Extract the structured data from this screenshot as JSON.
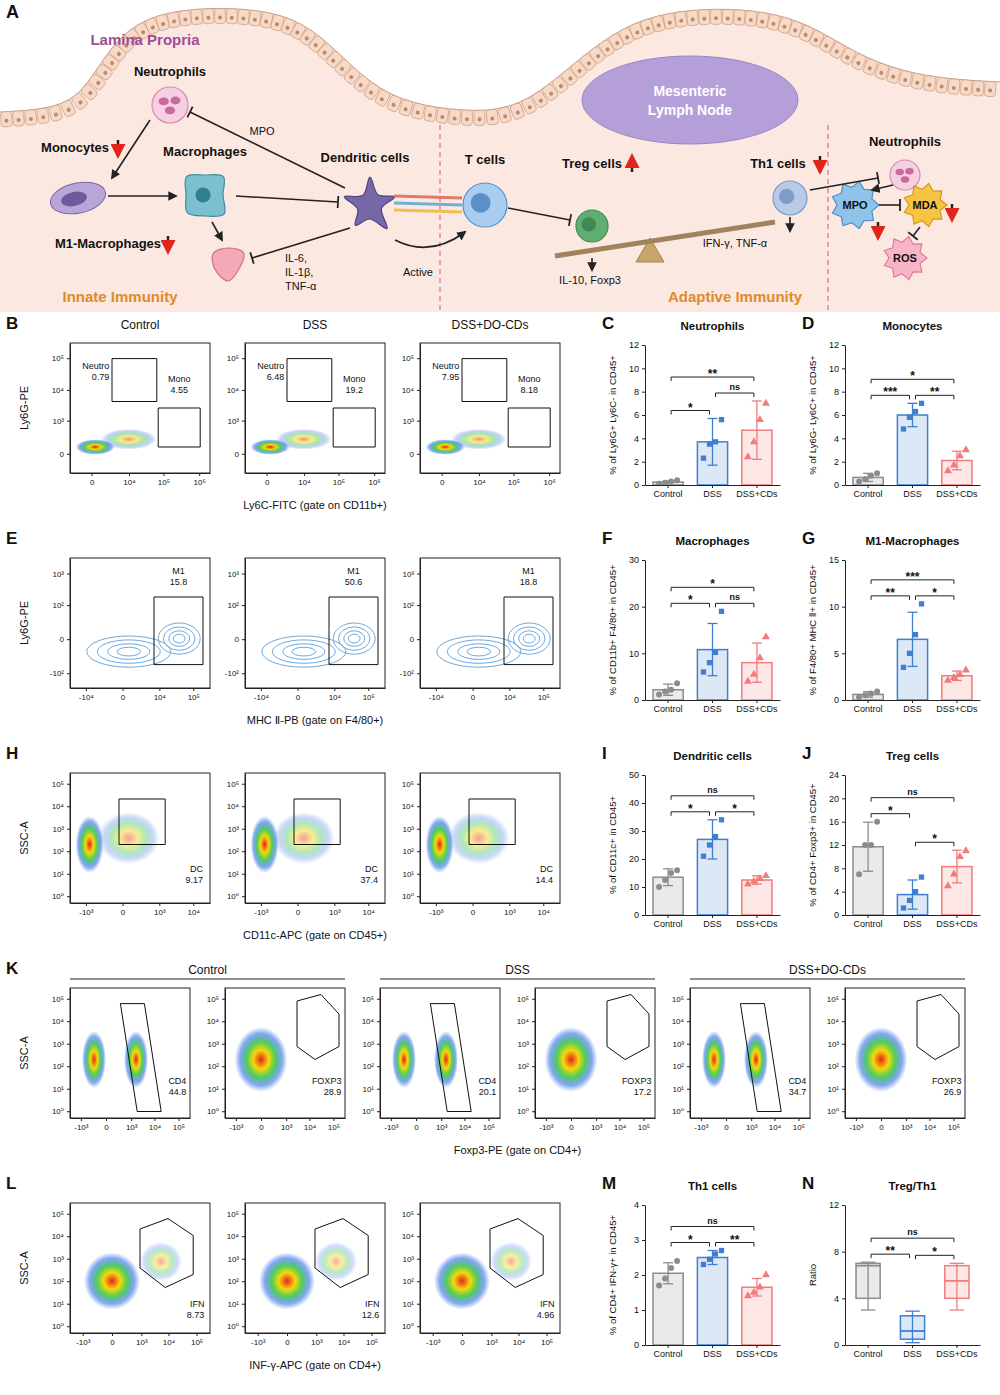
{
  "diagram": {
    "panel": "A",
    "region_label": "Lamina Propria",
    "lymph_node": "Mesenteric Lymph Node",
    "labels": [
      "Neutrophils",
      "Monocytes",
      "Macrophages",
      "M1-Macrophages",
      "Dendritic cells",
      "T cells",
      "Treg cells",
      "Th1 cells",
      "Neutrophils",
      "MPO",
      "MPO",
      "MDA",
      "ROS",
      "Active",
      "IL-10, Foxp3",
      "IFN-γ, TNF-α"
    ],
    "cytokines": [
      "IL-6,",
      "IL-1β,",
      "TNF-α"
    ],
    "sections": [
      "Innate Immunity",
      "Adaptive Immunity"
    ]
  },
  "chart_data": [
    {
      "panel": "B",
      "type": "flow",
      "titles": [
        "Control",
        "DSS",
        "DSS+DO-CDs"
      ],
      "xlabel": "Ly6C-FITC (gate on CD11b+)",
      "ylabel": "Ly6G-PE",
      "xlim": [
        -3000,
        2000000
      ],
      "xticks": [
        0,
        {
          "value": 10000,
          "label": "10⁴"
        },
        {
          "value": 100000,
          "label": "10⁵"
        },
        {
          "value": 1000000,
          "label": "10⁶"
        }
      ],
      "ylim": [
        -300,
        300000
      ],
      "yticks": [
        0,
        {
          "value": 1000,
          "label": "10³"
        },
        {
          "value": 10000,
          "label": "10⁴"
        },
        {
          "value": 100000,
          "label": "10⁵"
        }
      ],
      "plots": [
        {
          "gates": [
            {
              "label": "Neutro",
              "value": 0.79
            },
            {
              "label": "Mono",
              "value": 4.55
            }
          ]
        },
        {
          "gates": [
            {
              "label": "Neutro",
              "value": 6.48
            },
            {
              "label": "Mono",
              "value": 19.2
            }
          ]
        },
        {
          "gates": [
            {
              "label": "Neutro",
              "value": 7.95
            },
            {
              "label": "Mono",
              "value": 8.18
            }
          ]
        }
      ]
    },
    {
      "panel": "C",
      "type": "bar",
      "title": "Neutrophils",
      "ylabel": "% of Ly6G+ Ly6C- in CD45+",
      "categories": [
        "Control",
        "DSS",
        "DSS+CDs"
      ],
      "values": [
        0.25,
        3.7,
        4.7
      ],
      "errors": [
        0.1,
        2.0,
        2.5
      ],
      "points": [
        [
          0.1,
          0.2,
          0.3,
          0.4
        ],
        [
          2.3,
          3.5,
          3.7,
          5.6
        ],
        [
          2.4,
          3.7,
          5.6,
          7.0
        ]
      ],
      "colors": [
        "#8c8c8c",
        "#3f7fcf",
        "#f27c7c"
      ],
      "ylim": [
        0,
        12
      ],
      "yticks": [
        0,
        2,
        4,
        6,
        8,
        10,
        12
      ],
      "significance": [
        {
          "groups": [
            "Control",
            "DSS"
          ],
          "label": "*"
        },
        {
          "groups": [
            "DSS",
            "DSS+CDs"
          ],
          "label": "ns"
        },
        {
          "groups": [
            "Control",
            "DSS+CDs"
          ],
          "label": "**"
        }
      ]
    },
    {
      "panel": "D",
      "type": "bar",
      "title": "Monocytes",
      "ylabel": "% of Ly6G- Ly6C+ in CD45+",
      "categories": [
        "Control",
        "DSS",
        "DSS+CDs"
      ],
      "values": [
        0.65,
        6.0,
        2.1
      ],
      "errors": [
        0.35,
        1.0,
        0.8
      ],
      "points": [
        [
          0.3,
          0.5,
          0.8,
          1.0
        ],
        [
          4.8,
          5.8,
          6.3,
          7.0
        ],
        [
          1.2,
          1.7,
          2.5,
          3.0
        ]
      ],
      "colors": [
        "#8c8c8c",
        "#3f7fcf",
        "#f27c7c"
      ],
      "ylim": [
        0,
        12
      ],
      "yticks": [
        0,
        2,
        4,
        6,
        8,
        10,
        12
      ],
      "significance": [
        {
          "groups": [
            "Control",
            "DSS"
          ],
          "label": "***"
        },
        {
          "groups": [
            "DSS",
            "DSS+CDs"
          ],
          "label": "**"
        },
        {
          "groups": [
            "Control",
            "DSS+CDs"
          ],
          "label": "*"
        }
      ]
    },
    {
      "panel": "E",
      "type": "flow",
      "xlabel": "MHC Ⅱ-PB (gate on F4/80+)",
      "ylabel": "Ly6G-PE",
      "xlim": [
        -30000,
        300000
      ],
      "xticks": [
        {
          "value": -10000,
          "label": "-10⁴"
        },
        0,
        {
          "value": 10000,
          "label": "10⁴"
        },
        {
          "value": 100000,
          "label": "10⁵"
        }
      ],
      "ylim": [
        -300,
        3000
      ],
      "yticks": [
        {
          "value": -100,
          "label": "-10²"
        },
        0,
        {
          "value": 100,
          "label": "10²"
        },
        {
          "value": 1000,
          "label": "10³"
        }
      ],
      "plots": [
        {
          "gates": [
            {
              "label": "M1",
              "value": 15.8
            }
          ]
        },
        {
          "gates": [
            {
              "label": "M1",
              "value": 50.6
            }
          ]
        },
        {
          "gates": [
            {
              "label": "M1",
              "value": 18.8
            }
          ]
        }
      ]
    },
    {
      "panel": "F",
      "type": "bar",
      "title": "Macrophages",
      "ylabel": "% of CD11b+ F4/80+ in CD45+",
      "categories": [
        "Control",
        "DSS",
        "DSS+CDs"
      ],
      "values": [
        2.2,
        10.8,
        8.0
      ],
      "errors": [
        1.2,
        5.6,
        4.2
      ],
      "points": [
        [
          1.2,
          1.8,
          2.2,
          3.6
        ],
        [
          6.0,
          8.0,
          10.2,
          19.0
        ],
        [
          4.0,
          5.5,
          9.0,
          13.5
        ]
      ],
      "colors": [
        "#8c8c8c",
        "#3f7fcf",
        "#f27c7c"
      ],
      "ylim": [
        0,
        30
      ],
      "yticks": [
        0,
        10,
        20,
        30
      ],
      "significance": [
        {
          "groups": [
            "Control",
            "DSS"
          ],
          "label": "*"
        },
        {
          "groups": [
            "DSS",
            "DSS+CDs"
          ],
          "label": "ns"
        },
        {
          "groups": [
            "Control",
            "DSS+CDs"
          ],
          "label": "*"
        }
      ]
    },
    {
      "panel": "G",
      "type": "bar",
      "title": "M1-Macrophages",
      "ylabel": "% of F4/80+ MHC Ⅱ+ in CD45+",
      "categories": [
        "Control",
        "DSS",
        "DSS+CDs"
      ],
      "values": [
        0.6,
        6.5,
        2.6
      ],
      "errors": [
        0.3,
        2.9,
        0.5
      ],
      "points": [
        [
          0.3,
          0.5,
          0.7,
          0.9
        ],
        [
          3.5,
          5.0,
          7.0,
          10.3
        ],
        [
          2.1,
          2.4,
          2.7,
          3.2
        ]
      ],
      "colors": [
        "#8c8c8c",
        "#3f7fcf",
        "#f27c7c"
      ],
      "ylim": [
        0,
        15
      ],
      "yticks": [
        0,
        5,
        10,
        15
      ],
      "significance": [
        {
          "groups": [
            "Control",
            "DSS"
          ],
          "label": "**"
        },
        {
          "groups": [
            "DSS",
            "DSS+CDs"
          ],
          "label": "*"
        },
        {
          "groups": [
            "Control",
            "DSS+CDs"
          ],
          "label": "***"
        }
      ]
    },
    {
      "panel": "H",
      "type": "flow",
      "log": "y",
      "xlabel": "CD11c-APC (gate on CD45+)",
      "ylabel": "SSC-A",
      "xlim": [
        -3000,
        30000
      ],
      "xticks": [
        {
          "value": -1000,
          "label": "-10³"
        },
        0,
        {
          "value": 1000,
          "label": "10³"
        },
        {
          "value": 10000,
          "label": "10⁴"
        }
      ],
      "ylim": [
        0.5,
        300000
      ],
      "yticks": [
        {
          "value": 1,
          "label": "10⁰"
        },
        {
          "value": 10,
          "label": "10¹"
        },
        {
          "value": 100,
          "label": "10²"
        },
        {
          "value": 1000,
          "label": "10³"
        },
        {
          "value": 10000,
          "label": "10⁴"
        },
        {
          "value": 100000,
          "label": "10⁵"
        }
      ],
      "plots": [
        {
          "gates": [
            {
              "label": "DC",
              "value": 9.17
            }
          ]
        },
        {
          "gates": [
            {
              "label": "DC",
              "value": 37.4
            }
          ]
        },
        {
          "gates": [
            {
              "label": "DC",
              "value": 14.4
            }
          ]
        }
      ]
    },
    {
      "panel": "I",
      "type": "bar",
      "title": "Dendritic cells",
      "ylabel": "% of CD11c+ in CD45+",
      "categories": [
        "Control",
        "DSS",
        "DSS+CDs"
      ],
      "values": [
        13.5,
        27.0,
        12.5
      ],
      "errors": [
        3.0,
        7.0,
        1.5
      ],
      "points": [
        [
          10,
          12.5,
          15,
          16
        ],
        [
          21,
          25,
          28,
          34
        ],
        [
          11,
          12,
          13,
          14
        ]
      ],
      "colors": [
        "#8c8c8c",
        "#3f7fcf",
        "#f27c7c"
      ],
      "ylim": [
        0,
        50
      ],
      "yticks": [
        0,
        10,
        20,
        30,
        40,
        50
      ],
      "significance": [
        {
          "groups": [
            "Control",
            "DSS"
          ],
          "label": "*"
        },
        {
          "groups": [
            "DSS",
            "DSS+CDs"
          ],
          "label": "*"
        },
        {
          "groups": [
            "Control",
            "DSS+CDs"
          ],
          "label": "ns"
        }
      ]
    },
    {
      "panel": "J",
      "type": "bar",
      "title": "Treg cells",
      "ylabel": "% of CD4+ Foxp3+ in CD45+",
      "categories": [
        "Control",
        "DSS",
        "DSS+CDs"
      ],
      "values": [
        11.7,
        3.5,
        8.3
      ],
      "errors": [
        4.2,
        2.5,
        2.8
      ],
      "points": [
        [
          7,
          12,
          12,
          16
        ],
        [
          1.2,
          2.5,
          4.0,
          6.5
        ],
        [
          5,
          7,
          10,
          11
        ]
      ],
      "colors": [
        "#8c8c8c",
        "#3f7fcf",
        "#f27c7c"
      ],
      "ylim": [
        0,
        24
      ],
      "yticks": [
        0,
        4,
        8,
        12,
        16,
        20,
        24
      ],
      "significance": [
        {
          "groups": [
            "Control",
            "DSS"
          ],
          "label": "*"
        },
        {
          "groups": [
            "DSS",
            "DSS+CDs"
          ],
          "label": "*"
        },
        {
          "groups": [
            "Control",
            "DSS+CDs"
          ],
          "label": "ns"
        }
      ]
    },
    {
      "panel": "K",
      "type": "flow",
      "log": "y",
      "titles": [
        "Control",
        "DSS",
        "DSS+DO-CDs"
      ],
      "xlabel": "Foxp3-PE (gate on CD4+)",
      "ylabel": "SSC-A",
      "xlim": [
        -3000,
        300000
      ],
      "xticks": [
        {
          "value": -1000,
          "label": "-10³"
        },
        0,
        {
          "value": 1000,
          "label": "10³"
        },
        {
          "value": 10000,
          "label": "10⁴"
        },
        {
          "value": 100000,
          "label": "10⁵"
        }
      ],
      "ylim": [
        0.5,
        300000
      ],
      "yticks": [
        {
          "value": 1,
          "label": "10⁰"
        },
        {
          "value": 10,
          "label": "10¹"
        },
        {
          "value": 100,
          "label": "10²"
        },
        {
          "value": 1000,
          "label": "10³"
        },
        {
          "value": 10000,
          "label": "10⁴"
        },
        {
          "value": 100000,
          "label": "10⁵"
        }
      ],
      "plots": [
        {
          "gates": [
            {
              "label": "CD4",
              "value": 44.8
            }
          ]
        },
        {
          "gates": [
            {
              "label": "FOXP3",
              "value": 28.9
            }
          ]
        },
        {
          "gates": [
            {
              "label": "CD4",
              "value": 20.1
            }
          ]
        },
        {
          "gates": [
            {
              "label": "FOXP3",
              "value": 17.2
            }
          ]
        },
        {
          "gates": [
            {
              "label": "CD4",
              "value": 34.7
            }
          ]
        },
        {
          "gates": [
            {
              "label": "FOXP3",
              "value": 26.9
            }
          ]
        }
      ]
    },
    {
      "panel": "L",
      "type": "flow",
      "log": "y",
      "xlabel": "INF-γ-APC (gate on CD4+)",
      "ylabel": "SSC-A",
      "xlim": [
        -3000,
        300000
      ],
      "xticks": [
        {
          "value": -1000,
          "label": "-10³"
        },
        0,
        {
          "value": 1000,
          "label": "10³"
        },
        {
          "value": 10000,
          "label": "10⁴"
        },
        {
          "value": 100000,
          "label": "10⁵"
        }
      ],
      "ylim": [
        0.5,
        300000
      ],
      "yticks": [
        {
          "value": 1,
          "label": "10⁰"
        },
        {
          "value": 10,
          "label": "10¹"
        },
        {
          "value": 100,
          "label": "10²"
        },
        {
          "value": 1000,
          "label": "10³"
        },
        {
          "value": 10000,
          "label": "10⁴"
        },
        {
          "value": 100000,
          "label": "10⁵"
        }
      ],
      "plots": [
        {
          "gates": [
            {
              "label": "IFN",
              "value": 8.73
            }
          ]
        },
        {
          "gates": [
            {
              "label": "IFN",
              "value": 12.6
            }
          ]
        },
        {
          "gates": [
            {
              "label": "IFN",
              "value": 4.96
            }
          ]
        }
      ]
    },
    {
      "panel": "M",
      "type": "bar",
      "title": "Th1 cells",
      "ylabel": "% of CD4+ IFN-γ+ in CD45+",
      "categories": [
        "Control",
        "DSS",
        "DSS+CDs"
      ],
      "values": [
        2.05,
        2.5,
        1.65
      ],
      "errors": [
        0.3,
        0.2,
        0.25
      ],
      "points": [
        [
          1.7,
          1.9,
          2.2,
          2.4
        ],
        [
          2.3,
          2.45,
          2.6,
          2.7
        ],
        [
          1.4,
          1.5,
          1.65,
          2.0
        ]
      ],
      "colors": [
        "#8c8c8c",
        "#3f7fcf",
        "#f27c7c"
      ],
      "ylim": [
        0,
        4
      ],
      "yticks": [
        0,
        1,
        2,
        3,
        4
      ],
      "significance": [
        {
          "groups": [
            "Control",
            "DSS"
          ],
          "label": "*"
        },
        {
          "groups": [
            "DSS",
            "DSS+CDs"
          ],
          "label": "**"
        },
        {
          "groups": [
            "Control",
            "DSS+CDs"
          ],
          "label": "ns"
        }
      ]
    },
    {
      "panel": "N",
      "type": "box",
      "title": "Treg/Th1",
      "ylabel": "Ratio",
      "categories": [
        "Control",
        "DSS",
        "DSS+CDs"
      ],
      "min": [
        3.0,
        0.2,
        3.0
      ],
      "q1": [
        4.0,
        0.5,
        4.0
      ],
      "median": [
        6.8,
        1.2,
        5.5
      ],
      "q3": [
        7.0,
        2.5,
        6.8
      ],
      "max": [
        7.1,
        2.9,
        7.0
      ],
      "colors": [
        "#8c8c8c",
        "#3f7fcf",
        "#f27c7c"
      ],
      "ylim": [
        0,
        12
      ],
      "yticks": [
        0,
        4,
        8,
        12
      ],
      "significance": [
        {
          "groups": [
            "Control",
            "DSS"
          ],
          "label": "**"
        },
        {
          "groups": [
            "DSS",
            "DSS+CDs"
          ],
          "label": "*"
        },
        {
          "groups": [
            "Control",
            "DSS+CDs"
          ],
          "label": "ns"
        }
      ]
    }
  ]
}
